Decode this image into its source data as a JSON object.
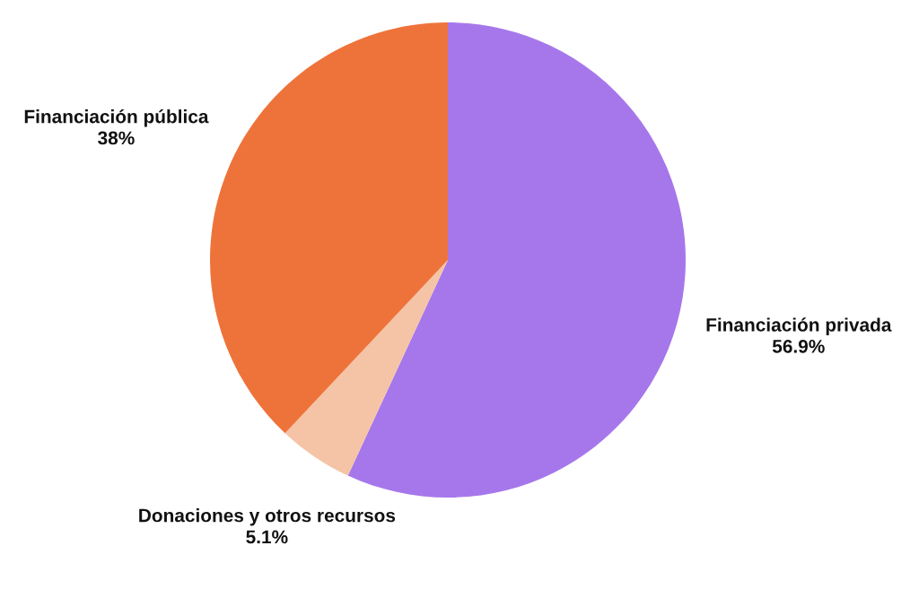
{
  "chart_data": {
    "type": "pie",
    "categories": [
      "Financiación privada",
      "Donaciones y otros recursos",
      "Financiación pública"
    ],
    "values": [
      56.9,
      5.1,
      38
    ],
    "value_labels": [
      "56.9%",
      "5.1%",
      "38%"
    ],
    "colors": [
      "#a677eb",
      "#f5c4a6",
      "#ee733a"
    ]
  }
}
